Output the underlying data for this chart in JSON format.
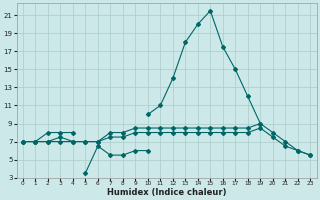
{
  "xlabel": "Humidex (Indice chaleur)",
  "background_color": "#cce8e8",
  "grid_color": "#aacccc",
  "line_color": "#006666",
  "x_values": [
    0,
    1,
    2,
    3,
    4,
    5,
    6,
    7,
    8,
    9,
    10,
    11,
    12,
    13,
    14,
    15,
    16,
    17,
    18,
    19,
    20,
    21,
    22,
    23
  ],
  "line1": [
    7,
    7,
    8,
    8,
    8,
    null,
    null,
    null,
    null,
    null,
    10,
    11,
    14,
    18,
    20,
    21.5,
    17.5,
    15,
    12,
    9,
    null,
    null,
    null,
    null
  ],
  "line2": [
    7,
    7,
    7,
    7.5,
    7,
    7,
    7,
    8,
    8,
    8.5,
    8.5,
    8.5,
    8.5,
    8.5,
    8.5,
    8.5,
    8.5,
    8.5,
    8.5,
    9,
    8,
    7,
    6,
    5.5
  ],
  "line3": [
    7,
    7,
    7,
    7,
    7,
    7,
    7,
    7.5,
    7.5,
    8,
    8,
    8,
    8,
    8,
    8,
    8,
    8,
    8,
    8,
    8.5,
    7.5,
    6.5,
    6,
    5.5
  ],
  "line4": [
    null,
    null,
    null,
    null,
    null,
    3.5,
    6.5,
    5.5,
    5.5,
    6,
    6,
    null,
    null,
    null,
    null,
    null,
    null,
    null,
    null,
    null,
    null,
    null,
    null,
    null
  ],
  "ylim": [
    3,
    22
  ],
  "xlim": [
    -0.5,
    23.5
  ],
  "yticks": [
    3,
    5,
    7,
    9,
    11,
    13,
    15,
    17,
    19,
    21
  ],
  "xticks": [
    0,
    1,
    2,
    3,
    4,
    5,
    6,
    7,
    8,
    9,
    10,
    11,
    12,
    13,
    14,
    15,
    16,
    17,
    18,
    19,
    20,
    21,
    22,
    23
  ]
}
